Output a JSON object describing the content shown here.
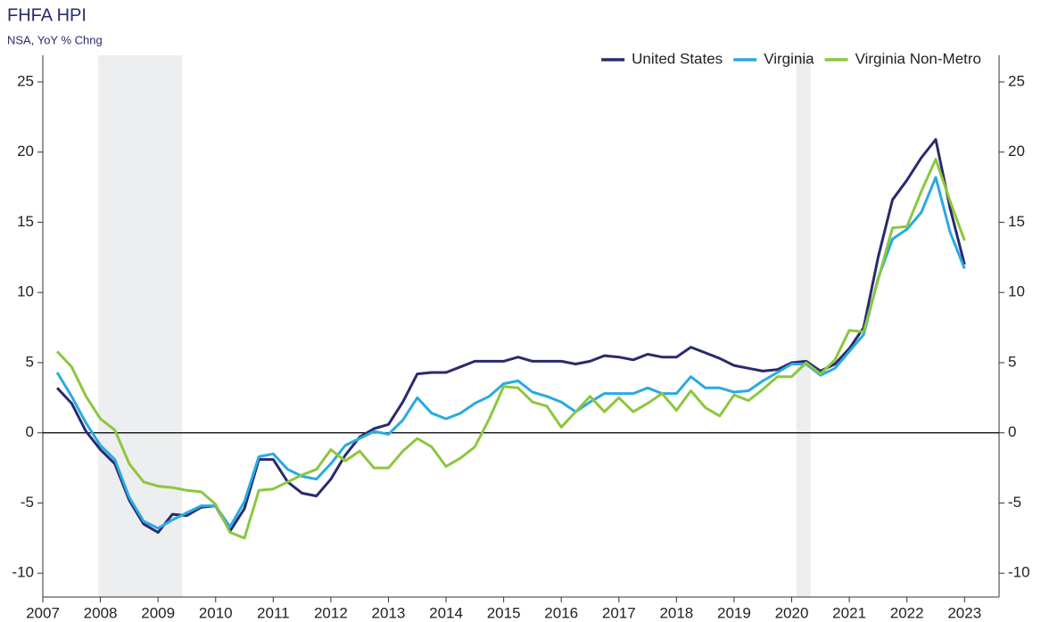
{
  "chart_data": {
    "type": "line",
    "title": "FHFA HPI",
    "subtitle": "NSA, YoY % Chng",
    "x": [
      2007.25,
      2007.5,
      2007.75,
      2008,
      2008.25,
      2008.5,
      2008.75,
      2009,
      2009.25,
      2009.5,
      2009.75,
      2010,
      2010.25,
      2010.5,
      2010.75,
      2011,
      2011.25,
      2011.5,
      2011.75,
      2012,
      2012.25,
      2012.5,
      2012.75,
      2013,
      2013.25,
      2013.5,
      2013.75,
      2014,
      2014.25,
      2014.5,
      2014.75,
      2015,
      2015.25,
      2015.5,
      2015.75,
      2016,
      2016.25,
      2016.5,
      2016.75,
      2017,
      2017.25,
      2017.5,
      2017.75,
      2018,
      2018.25,
      2018.5,
      2018.75,
      2019,
      2019.25,
      2019.5,
      2019.75,
      2020,
      2020.25,
      2020.5,
      2020.75,
      2021,
      2021.25,
      2021.5,
      2021.75,
      2022,
      2022.25,
      2022.5,
      2022.75,
      2023
    ],
    "series": [
      {
        "name": "United States",
        "color": "#2a2a6e",
        "values": [
          3.2,
          2.1,
          0.1,
          -1.2,
          -2.2,
          -4.8,
          -6.5,
          -7.1,
          -5.8,
          -5.9,
          -5.3,
          -5.2,
          -7.0,
          -5.4,
          -1.9,
          -1.9,
          -3.5,
          -4.3,
          -4.5,
          -3.3,
          -1.6,
          -0.3,
          0.3,
          0.6,
          2.2,
          4.2,
          4.3,
          4.3,
          4.7,
          5.1,
          5.1,
          5.1,
          5.4,
          5.1,
          5.1,
          5.1,
          4.9,
          5.1,
          5.5,
          5.4,
          5.2,
          5.6,
          5.4,
          5.4,
          6.1,
          5.7,
          5.3,
          4.8,
          4.6,
          4.4,
          4.5,
          5.0,
          5.1,
          4.4,
          4.9,
          6.0,
          7.5,
          12.5,
          16.6,
          18.0,
          19.6,
          20.9,
          16.0,
          12.0
        ]
      },
      {
        "name": "Virginia",
        "color": "#29aae1",
        "values": [
          4.3,
          2.6,
          0.7,
          -0.9,
          -1.9,
          -4.6,
          -6.3,
          -6.8,
          -6.2,
          -5.7,
          -5.2,
          -5.2,
          -6.7,
          -4.9,
          -1.7,
          -1.5,
          -2.6,
          -3.1,
          -3.3,
          -2.2,
          -0.9,
          -0.4,
          0.1,
          -0.1,
          0.9,
          2.5,
          1.4,
          1.0,
          1.4,
          2.1,
          2.6,
          3.5,
          3.7,
          2.9,
          2.6,
          2.2,
          1.5,
          2.2,
          2.8,
          2.8,
          2.8,
          3.2,
          2.8,
          2.8,
          4.0,
          3.2,
          3.2,
          2.9,
          3.0,
          3.7,
          4.3,
          4.9,
          4.9,
          4.1,
          4.6,
          5.8,
          7.0,
          11.0,
          13.8,
          14.5,
          15.7,
          18.2,
          14.3,
          11.7
        ]
      },
      {
        "name": "Virginia Non-Metro",
        "color": "#8dc63f",
        "values": [
          5.8,
          4.7,
          2.6,
          1.0,
          0.2,
          -2.2,
          -3.5,
          -3.8,
          -3.9,
          -4.1,
          -4.2,
          -5.1,
          -7.1,
          -7.5,
          -4.1,
          -4.0,
          -3.5,
          -3.0,
          -2.6,
          -1.2,
          -2.0,
          -1.3,
          -2.5,
          -2.5,
          -1.3,
          -0.4,
          -1.0,
          -2.4,
          -1.8,
          -1.0,
          1.0,
          3.3,
          3.2,
          2.2,
          1.9,
          0.4,
          1.5,
          2.6,
          1.5,
          2.5,
          1.5,
          2.1,
          2.8,
          1.6,
          3.0,
          1.8,
          1.2,
          2.7,
          2.3,
          3.1,
          4.0,
          4.0,
          5.0,
          4.2,
          5.2,
          7.3,
          7.2,
          10.9,
          14.6,
          14.7,
          17.2,
          19.5,
          16.5,
          13.7
        ]
      }
    ],
    "recessions": [
      [
        2007.96,
        2009.42
      ],
      [
        2020.08,
        2020.33
      ]
    ],
    "recession_color": "#eceeef",
    "xlim": [
      2007,
      2023.6
    ],
    "xticks": [
      2007,
      2008,
      2009,
      2010,
      2011,
      2012,
      2013,
      2014,
      2015,
      2016,
      2017,
      2018,
      2019,
      2020,
      2021,
      2022,
      2023
    ],
    "ylim": [
      -11.7,
      26.9
    ],
    "yticks": [
      -10,
      -5,
      0,
      5,
      10,
      15,
      20,
      25
    ],
    "legend": "top-right"
  }
}
